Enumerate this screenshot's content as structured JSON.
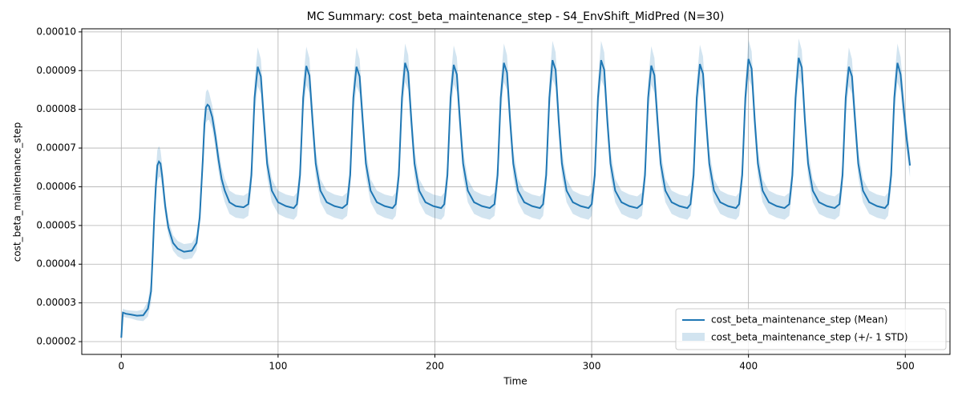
{
  "chart_data": {
    "type": "line",
    "title": "MC Summary: cost_beta_maintenance_step - S4_EnvShift_MidPred (N=30)",
    "x_label": "Time",
    "y_label": "cost_beta_maintenance_step",
    "x": [
      0,
      1,
      3,
      6,
      10,
      14,
      17,
      19,
      20,
      21,
      22,
      23,
      24,
      25,
      26,
      27,
      28,
      30,
      33,
      36,
      40,
      45,
      48,
      50,
      52,
      53,
      54,
      55,
      56,
      58,
      60,
      62,
      64,
      66,
      69,
      73,
      78,
      81,
      83,
      85,
      87,
      89,
      91,
      93,
      96,
      100,
      105,
      110,
      112,
      114,
      116,
      118,
      120,
      122,
      124,
      127,
      131,
      136,
      141,
      144,
      146,
      148,
      150,
      152,
      154,
      156,
      159,
      163,
      168,
      173,
      175,
      177,
      179,
      181,
      183,
      185,
      187,
      190,
      194,
      199,
      204,
      206,
      208,
      210,
      212,
      214,
      216,
      218,
      221,
      225,
      230,
      235,
      238,
      240,
      242,
      244,
      246,
      248,
      250,
      253,
      257,
      262,
      267,
      269,
      271,
      273,
      275,
      277,
      279,
      281,
      284,
      288,
      293,
      298,
      300,
      302,
      304,
      306,
      308,
      310,
      312,
      315,
      319,
      324,
      329,
      332,
      334,
      336,
      338,
      340,
      342,
      344,
      347,
      351,
      356,
      361,
      363,
      365,
      367,
      369,
      371,
      373,
      375,
      378,
      382,
      387,
      392,
      394,
      396,
      398,
      400,
      402,
      404,
      406,
      409,
      413,
      418,
      423,
      426,
      428,
      430,
      432,
      434,
      436,
      438,
      441,
      445,
      450,
      455,
      458,
      460,
      462,
      464,
      466,
      468,
      470,
      473,
      477,
      482,
      487,
      489,
      491,
      493,
      495,
      497,
      499,
      501,
      503
    ],
    "series": [
      {
        "name": "cost_beta_maintenance_step (Mean)",
        "color": "#1f77b4",
        "values": [
          2.1e-05,
          2.75e-05,
          2.72e-05,
          2.7e-05,
          2.67e-05,
          2.68e-05,
          2.85e-05,
          3.3e-05,
          4.2e-05,
          5.2e-05,
          6e-05,
          6.55e-05,
          6.65e-05,
          6.6e-05,
          6.3e-05,
          5.9e-05,
          5.5e-05,
          4.95e-05,
          4.55e-05,
          4.4e-05,
          4.32e-05,
          4.35e-05,
          4.55e-05,
          5.2e-05,
          6.7e-05,
          7.6e-05,
          8.05e-05,
          8.12e-05,
          8.08e-05,
          7.8e-05,
          7.3e-05,
          6.7e-05,
          6.2e-05,
          5.9e-05,
          5.6e-05,
          5.5e-05,
          5.47e-05,
          5.55e-05,
          6.3e-05,
          8.3e-05,
          9.1e-05,
          8.85e-05,
          7.7e-05,
          6.6e-05,
          5.9e-05,
          5.6e-05,
          5.5e-05,
          5.45e-05,
          5.55e-05,
          6.3e-05,
          8.3e-05,
          9.12e-05,
          8.87e-05,
          7.7e-05,
          6.6e-05,
          5.9e-05,
          5.6e-05,
          5.5e-05,
          5.45e-05,
          5.55e-05,
          6.3e-05,
          8.3e-05,
          9.1e-05,
          8.85e-05,
          7.7e-05,
          6.6e-05,
          5.9e-05,
          5.6e-05,
          5.5e-05,
          5.45e-05,
          5.55e-05,
          6.3e-05,
          8.3e-05,
          9.2e-05,
          8.95e-05,
          7.7e-05,
          6.6e-05,
          5.9e-05,
          5.6e-05,
          5.5e-05,
          5.45e-05,
          5.55e-05,
          6.3e-05,
          8.3e-05,
          9.15e-05,
          8.9e-05,
          7.7e-05,
          6.6e-05,
          5.9e-05,
          5.6e-05,
          5.5e-05,
          5.45e-05,
          5.55e-05,
          6.3e-05,
          8.3e-05,
          9.2e-05,
          8.95e-05,
          7.7e-05,
          6.6e-05,
          5.9e-05,
          5.6e-05,
          5.5e-05,
          5.45e-05,
          5.55e-05,
          6.3e-05,
          8.3e-05,
          9.27e-05,
          9.02e-05,
          7.7e-05,
          6.6e-05,
          5.9e-05,
          5.6e-05,
          5.5e-05,
          5.45e-05,
          5.55e-05,
          6.3e-05,
          8.3e-05,
          9.27e-05,
          9.02e-05,
          7.7e-05,
          6.6e-05,
          5.9e-05,
          5.6e-05,
          5.5e-05,
          5.45e-05,
          5.55e-05,
          6.3e-05,
          8.3e-05,
          9.13e-05,
          8.88e-05,
          7.7e-05,
          6.6e-05,
          5.9e-05,
          5.6e-05,
          5.5e-05,
          5.45e-05,
          5.55e-05,
          6.3e-05,
          8.3e-05,
          9.17e-05,
          8.92e-05,
          7.7e-05,
          6.6e-05,
          5.9e-05,
          5.6e-05,
          5.5e-05,
          5.45e-05,
          5.55e-05,
          6.3e-05,
          8.3e-05,
          9.3e-05,
          9.05e-05,
          7.7e-05,
          6.6e-05,
          5.9e-05,
          5.6e-05,
          5.5e-05,
          5.45e-05,
          5.55e-05,
          6.3e-05,
          8.3e-05,
          9.33e-05,
          9.08e-05,
          7.7e-05,
          6.6e-05,
          5.9e-05,
          5.6e-05,
          5.5e-05,
          5.45e-05,
          5.55e-05,
          6.3e-05,
          8.3e-05,
          9.1e-05,
          8.85e-05,
          7.7e-05,
          6.6e-05,
          5.9e-05,
          5.6e-05,
          5.5e-05,
          5.45e-05,
          5.55e-05,
          6.3e-05,
          8.3e-05,
          9.2e-05,
          8.9e-05,
          8e-05,
          7.2e-05,
          6.55e-05
        ]
      },
      {
        "name": "cost_beta_maintenance_step (+/- 1 STD)",
        "color": "#1f77b4",
        "values": [
          5e-07,
          1e-06,
          1e-06,
          1e-06,
          1.2e-06,
          1.5e-06,
          2e-06,
          3e-06,
          3.5e-06,
          4e-06,
          4e-06,
          4e-06,
          4e-06,
          3.5e-06,
          3e-06,
          3e-06,
          2.5e-06,
          2e-06,
          2e-06,
          2e-06,
          2e-06,
          2e-06,
          2e-06,
          2.5e-06,
          3.5e-06,
          4e-06,
          4e-06,
          4e-06,
          3.5e-06,
          3e-06,
          3e-06,
          3e-06,
          3e-06,
          3e-06,
          3e-06,
          3e-06,
          3e-06,
          3e-06,
          3.5e-06,
          4.5e-06,
          5e-06,
          4.5e-06,
          4e-06,
          3.5e-06,
          3e-06,
          3e-06,
          3e-06,
          3e-06,
          3e-06,
          3.5e-06,
          4.5e-06,
          5e-06,
          4.5e-06,
          4e-06,
          3.5e-06,
          3e-06,
          3e-06,
          3e-06,
          3e-06,
          3e-06,
          3.5e-06,
          4.5e-06,
          5e-06,
          4.5e-06,
          4e-06,
          3.5e-06,
          3e-06,
          3e-06,
          3e-06,
          3e-06,
          3e-06,
          3.5e-06,
          4.5e-06,
          5e-06,
          4.5e-06,
          4e-06,
          3.5e-06,
          3e-06,
          3e-06,
          3e-06,
          3e-06,
          3e-06,
          3.5e-06,
          4.5e-06,
          5e-06,
          4.5e-06,
          4e-06,
          3.5e-06,
          3e-06,
          3e-06,
          3e-06,
          3e-06,
          3e-06,
          3.5e-06,
          4.5e-06,
          5e-06,
          4.5e-06,
          4e-06,
          3.5e-06,
          3e-06,
          3e-06,
          3e-06,
          3e-06,
          3e-06,
          3.5e-06,
          4.5e-06,
          5e-06,
          4.5e-06,
          4e-06,
          3.5e-06,
          3e-06,
          3e-06,
          3e-06,
          3e-06,
          3e-06,
          3.5e-06,
          4.5e-06,
          5e-06,
          4.5e-06,
          4e-06,
          3.5e-06,
          3e-06,
          3e-06,
          3e-06,
          3e-06,
          3e-06,
          3.5e-06,
          4.5e-06,
          5e-06,
          4.5e-06,
          4e-06,
          3.5e-06,
          3e-06,
          3e-06,
          3e-06,
          3e-06,
          3e-06,
          3.5e-06,
          4.5e-06,
          5e-06,
          4.5e-06,
          4e-06,
          3.5e-06,
          3e-06,
          3e-06,
          3e-06,
          3e-06,
          3e-06,
          3.5e-06,
          4.5e-06,
          5e-06,
          4.5e-06,
          4e-06,
          3.5e-06,
          3e-06,
          3e-06,
          3e-06,
          3e-06,
          3e-06,
          3.5e-06,
          4.5e-06,
          5e-06,
          4.5e-06,
          4e-06,
          3.5e-06,
          3e-06,
          3e-06,
          3e-06,
          3e-06,
          3e-06,
          3.5e-06,
          4.5e-06,
          5e-06,
          4.5e-06,
          4e-06,
          3.5e-06,
          3e-06,
          3e-06,
          3e-06,
          3e-06,
          3e-06,
          3.5e-06,
          4.5e-06,
          5e-06,
          4.5e-06,
          4e-06,
          3.5e-06,
          3e-06
        ]
      }
    ],
    "xlim": [
      -25.2,
      528.5
    ],
    "xticks": [
      0,
      100,
      200,
      300,
      400,
      500
    ],
    "ylim": [
      1.67e-05,
      0.0001008
    ],
    "yticks": [
      2e-05,
      3e-05,
      4e-05,
      5e-05,
      6e-05,
      7e-05,
      8e-05,
      9e-05,
      {
        "value": 0.0001,
        "label": "0.00010"
      }
    ],
    "grid": true,
    "legend": "lower right"
  }
}
